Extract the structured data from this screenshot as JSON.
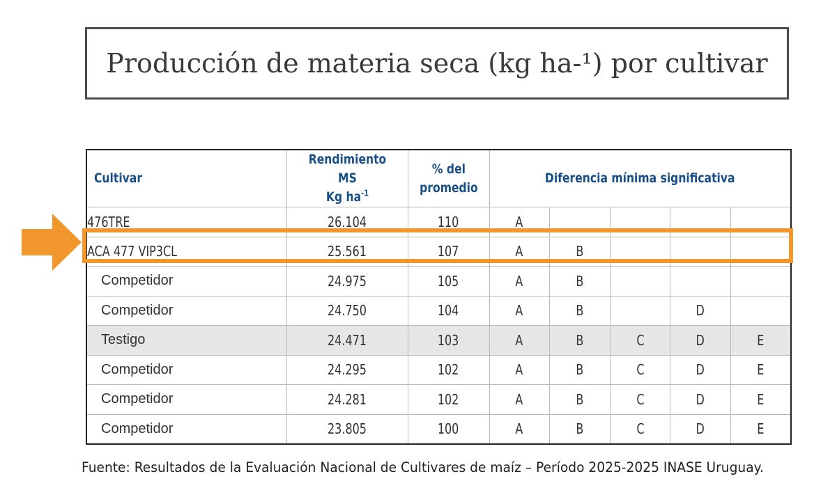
{
  "title": "Producción de materia seca (kg ha-¹) por cultivar",
  "table": {
    "headers": {
      "cultivar": "Cultivar",
      "rendimiento_line1": "Rendimiento MS",
      "rendimiento_line2": "Kg ha",
      "rendimiento_sup": "-1",
      "pct_line1": "% del",
      "pct_line2": "promedio",
      "dms": "Diferencia mínima significativa"
    },
    "rows": [
      {
        "cultivar": "476TRE",
        "rendimiento": "26.104",
        "pct": "110",
        "groups": [
          "A",
          "",
          "",
          "",
          ""
        ]
      },
      {
        "cultivar": "ACA 477 VIP3CL",
        "rendimiento": "25.561",
        "pct": "107",
        "groups": [
          "A",
          "B",
          "",
          "",
          ""
        ]
      },
      {
        "cultivar": "Competidor",
        "rendimiento": "24.975",
        "pct": "105",
        "groups": [
          "A",
          "B",
          "",
          "",
          ""
        ]
      },
      {
        "cultivar": "Competidor",
        "rendimiento": "24.750",
        "pct": "104",
        "groups": [
          "A",
          "B",
          "",
          "D",
          ""
        ]
      },
      {
        "cultivar": "Testigo",
        "rendimiento": "24.471",
        "pct": "103",
        "groups": [
          "A",
          "B",
          "C",
          "D",
          "E"
        ]
      },
      {
        "cultivar": "Competidor",
        "rendimiento": "24.295",
        "pct": "102",
        "groups": [
          "A",
          "B",
          "C",
          "D",
          "E"
        ]
      },
      {
        "cultivar": "Competidor",
        "rendimiento": "24.281",
        "pct": "102",
        "groups": [
          "A",
          "B",
          "C",
          "D",
          "E"
        ]
      },
      {
        "cultivar": "Competidor",
        "rendimiento": "23.805",
        "pct": "100",
        "groups": [
          "A",
          "B",
          "C",
          "D",
          "E"
        ]
      }
    ]
  },
  "highlight_color": "#f2962e",
  "header_color": "#1a4f86",
  "source": "Fuente: Resultados de la Evaluación Nacional de Cultivares de maíz – Período 2025-2025 INASE Uruguay."
}
